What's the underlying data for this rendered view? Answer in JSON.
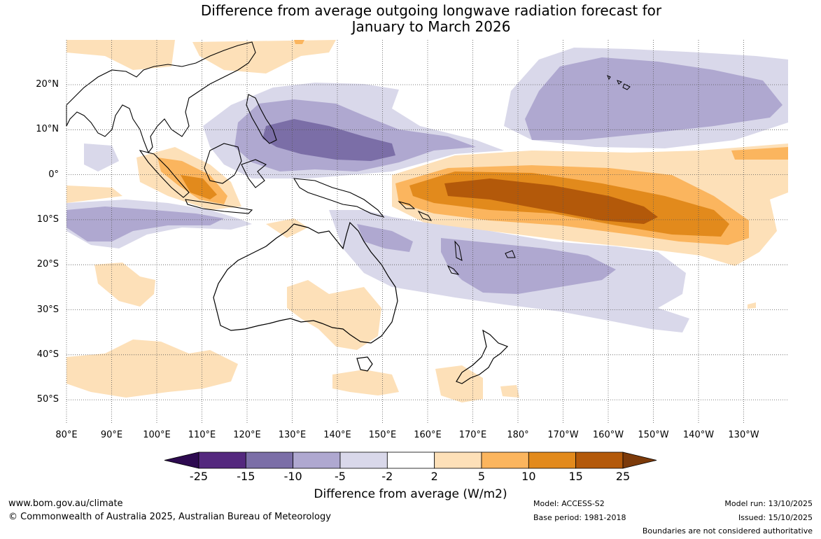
{
  "title": {
    "line1": "Difference from average outgoing longwave radiation forecast for",
    "line2": "January to March 2026"
  },
  "latitude_labels": [
    "20°N",
    "10°N",
    "0°",
    "10°S",
    "20°S",
    "30°S",
    "40°S",
    "50°S"
  ],
  "longitude_labels": [
    "80°E",
    "90°E",
    "100°E",
    "110°E",
    "120°E",
    "130°E",
    "140°E",
    "150°E",
    "160°E",
    "170°E",
    "180°",
    "170°W",
    "160°W",
    "150°W",
    "140°W",
    "130°W"
  ],
  "colorbar": {
    "ticks": [
      "-25",
      "-15",
      "-10",
      "-5",
      "-2",
      "2",
      "5",
      "10",
      "15",
      "25"
    ],
    "colors": [
      "#2d0a50",
      "#54287e",
      "#7b6ea7",
      "#afa8d0",
      "#d9d8ea",
      "#ffffff",
      "#fde0b8",
      "#fbb55e",
      "#e28a1c",
      "#b3590a",
      "#7c3a0a"
    ],
    "label": "Difference from average (W/m2)"
  },
  "footer": {
    "website": "www.bom.gov.au/climate",
    "copyright": "© Commonwealth of Australia 2025, Australian Bureau of Meteorology",
    "model": "Model: ACCESS-S2",
    "base_period": "Base period: 1981-2018",
    "model_run": "Model run: 13/10/2025",
    "issued": "Issued: 15/10/2025",
    "disclaimer": "Boundaries are not considered authoritative"
  }
}
